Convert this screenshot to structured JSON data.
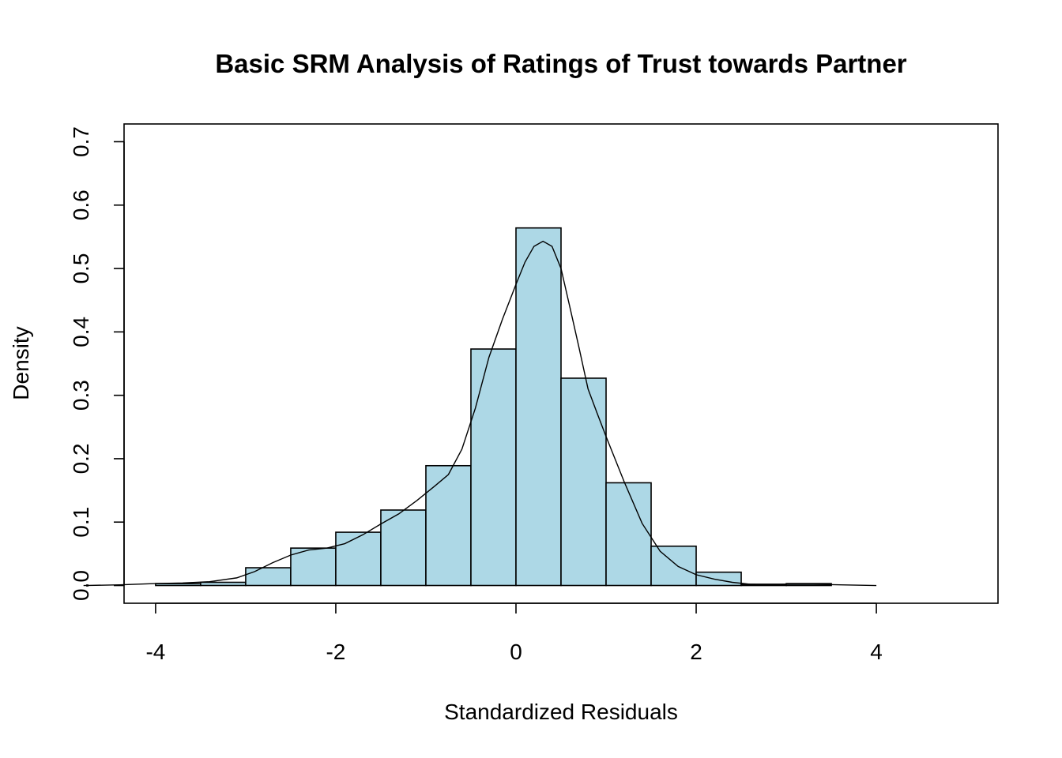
{
  "chart_data": {
    "type": "histogram",
    "title": "Basic SRM Analysis of Ratings of Trust towards Partner",
    "xlabel": "Standardized Residuals",
    "ylabel": "Density",
    "xlim": [
      -4.35,
      5.35
    ],
    "ylim": [
      -0.028,
      0.728
    ],
    "x_ticks": [
      "-4",
      "-2",
      "0",
      "2",
      "4"
    ],
    "x_tick_values": [
      -4,
      -2,
      0,
      2,
      4
    ],
    "y_ticks": [
      "0.0",
      "0.1",
      "0.2",
      "0.3",
      "0.4",
      "0.5",
      "0.6",
      "0.7"
    ],
    "y_tick_values": [
      0,
      0.1,
      0.2,
      0.3,
      0.4,
      0.5,
      0.6,
      0.7
    ],
    "bins": [
      {
        "x0": -4.0,
        "x1": -3.5,
        "density": 0.003
      },
      {
        "x0": -3.5,
        "x1": -3.0,
        "density": 0.005
      },
      {
        "x0": -3.0,
        "x1": -2.5,
        "density": 0.028
      },
      {
        "x0": -2.5,
        "x1": -2.0,
        "density": 0.059
      },
      {
        "x0": -2.0,
        "x1": -1.5,
        "density": 0.084
      },
      {
        "x0": -1.5,
        "x1": -1.0,
        "density": 0.119
      },
      {
        "x0": -1.0,
        "x1": -0.5,
        "density": 0.189
      },
      {
        "x0": -0.5,
        "x1": 0.0,
        "density": 0.373
      },
      {
        "x0": 0.0,
        "x1": 0.5,
        "density": 0.564
      },
      {
        "x0": 0.5,
        "x1": 1.0,
        "density": 0.327
      },
      {
        "x0": 1.0,
        "x1": 1.5,
        "density": 0.162
      },
      {
        "x0": 1.5,
        "x1": 2.0,
        "density": 0.062
      },
      {
        "x0": 2.0,
        "x1": 2.5,
        "density": 0.021
      },
      {
        "x0": 2.5,
        "x1": 3.0,
        "density": 0.002
      },
      {
        "x0": 3.0,
        "x1": 3.5,
        "density": 0.003
      }
    ],
    "density_curve": {
      "x": [
        -4.8,
        -4.4,
        -4.0,
        -3.7,
        -3.4,
        -3.1,
        -2.9,
        -2.7,
        -2.5,
        -2.3,
        -2.1,
        -1.9,
        -1.7,
        -1.5,
        -1.3,
        -1.1,
        -0.9,
        -0.75,
        -0.6,
        -0.45,
        -0.3,
        -0.15,
        0.0,
        0.1,
        0.2,
        0.3,
        0.4,
        0.5,
        0.6,
        0.7,
        0.8,
        0.9,
        1.0,
        1.2,
        1.4,
        1.6,
        1.8,
        2.0,
        2.2,
        2.4,
        2.6,
        2.8,
        3.0,
        3.3,
        3.6,
        4.0
      ],
      "y": [
        0.0,
        0.001,
        0.003,
        0.004,
        0.006,
        0.012,
        0.022,
        0.036,
        0.048,
        0.056,
        0.059,
        0.066,
        0.08,
        0.097,
        0.113,
        0.134,
        0.157,
        0.175,
        0.215,
        0.28,
        0.36,
        0.42,
        0.475,
        0.51,
        0.535,
        0.543,
        0.535,
        0.5,
        0.438,
        0.375,
        0.31,
        0.272,
        0.235,
        0.164,
        0.098,
        0.054,
        0.03,
        0.017,
        0.01,
        0.005,
        0.002,
        0.001,
        0.002,
        0.002,
        0.001,
        0.0
      ]
    },
    "bar_color": "#add8e6",
    "grid": false,
    "legend": "none"
  }
}
